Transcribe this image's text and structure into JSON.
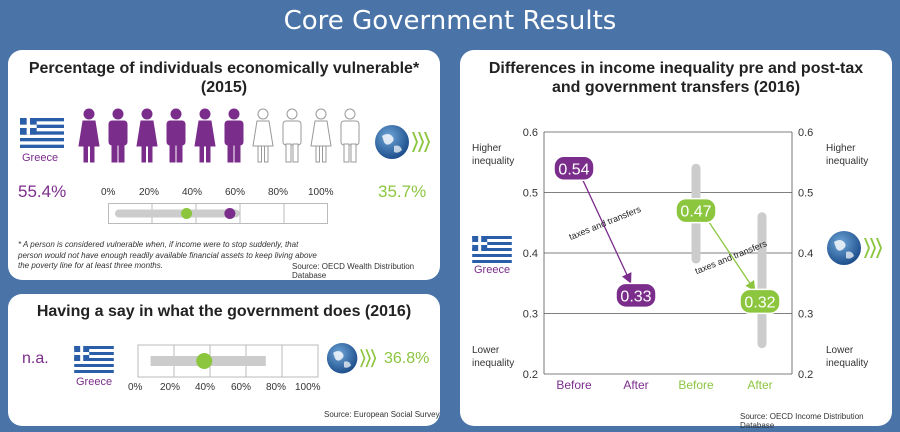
{
  "header": {
    "title": "Core Government Results"
  },
  "vuln": {
    "title": "Percentage of individuals economically vulnerable* (2015)",
    "country": "Greece",
    "country_value": "55.4%",
    "oecd_value": "35.7%",
    "scale_ticks": [
      "0%",
      "20%",
      "40%",
      "60%",
      "80%",
      "100%"
    ],
    "note": "* A person is considered vulnerable when, if income were to stop suddenly, that person would not have enough readily available financial assets to keep living above the poverty line for at least three months.",
    "source": "Source: OECD Wealth Distribution Database",
    "icons_purple": 6,
    "icons_total": 10
  },
  "say": {
    "title": "Having a say in what the government does (2016)",
    "country_value": "n.a.",
    "country": "Greece",
    "oecd_value": "36.8%",
    "scale_ticks": [
      "0%",
      "20%",
      "40%",
      "60%",
      "80%",
      "100%"
    ],
    "source": "Source: European Social Survey"
  },
  "ineq": {
    "title": "Differences in income inequality pre and post-tax and government transfers (2016)",
    "higher": "Higher inequality",
    "lower": "Lower inequality",
    "country": "Greece",
    "arrow_label": "taxes and transfers",
    "source": "Source: OECD Income Distribution Database",
    "y_ticks": [
      "0.6",
      "0.5",
      "0.4",
      "0.3",
      "0.2"
    ],
    "x_labels": [
      "Before",
      "After",
      "Before",
      "After"
    ],
    "greece_before": "0.54",
    "greece_after": "0.33",
    "oecd_before": "0.47",
    "oecd_after": "0.32"
  },
  "colors": {
    "greece": "#7b2d8b",
    "oecd": "#8cc63f",
    "background": "#4a74a8",
    "bar": "#cccccc"
  },
  "chart_data": [
    {
      "type": "scatter",
      "title": "Percentage of individuals economically vulnerable* (2015)",
      "series": [
        {
          "name": "Greece",
          "values": [
            55.4
          ]
        },
        {
          "name": "OECD",
          "values": [
            35.7
          ]
        }
      ],
      "xlim": [
        0,
        100
      ],
      "range": [
        5,
        58
      ]
    },
    {
      "type": "scatter",
      "title": "Having a say in what the government does (2016)",
      "series": [
        {
          "name": "OECD",
          "values": [
            36.8
          ]
        }
      ],
      "xlim": [
        0,
        100
      ],
      "range": [
        7,
        71
      ]
    },
    {
      "type": "line",
      "title": "Differences in income inequality pre and post-tax and government transfers (2016)",
      "categories": [
        "Before",
        "After"
      ],
      "series": [
        {
          "name": "Greece",
          "values": [
            0.54,
            0.33
          ]
        },
        {
          "name": "OECD",
          "values": [
            0.47,
            0.32
          ]
        }
      ],
      "oecd_ranges": {
        "Before": [
          0.39,
          0.54
        ],
        "After": [
          0.25,
          0.46
        ]
      },
      "ylim": [
        0.2,
        0.6
      ],
      "ylabel_left": [
        "Higher inequality",
        "Lower inequality"
      ]
    }
  ]
}
